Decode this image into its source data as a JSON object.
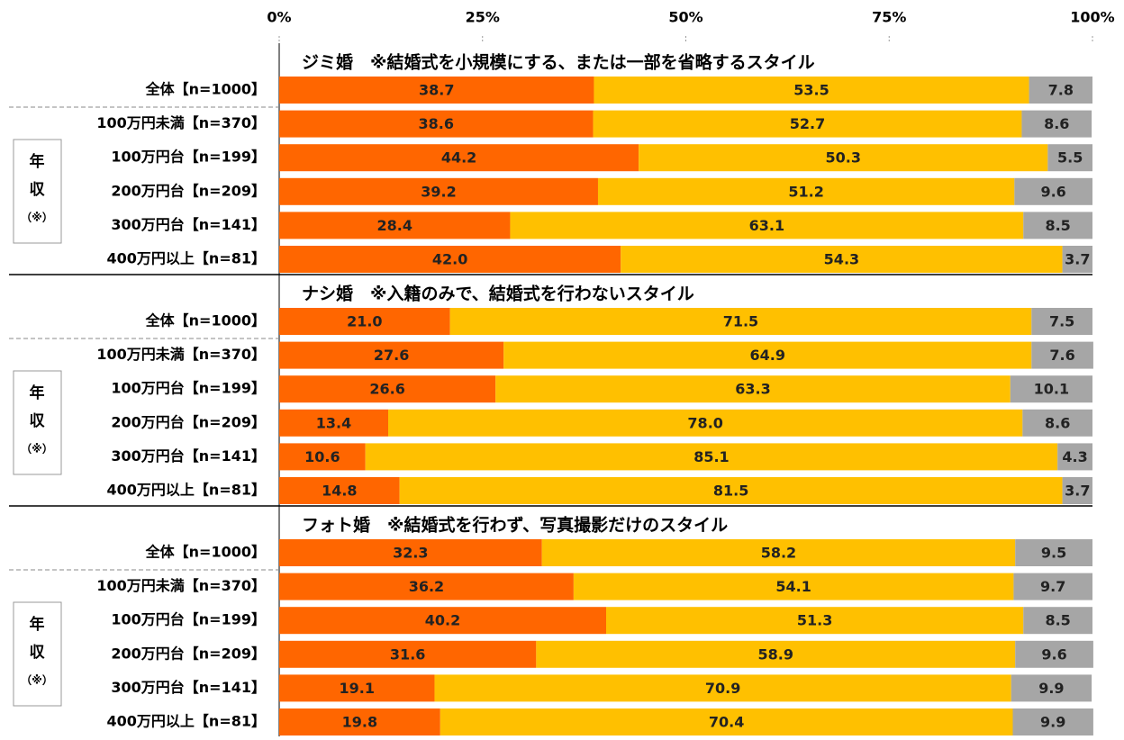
{
  "chart_data": [
    {
      "type": "bar",
      "orientation": "horizontal",
      "stacked": true,
      "title": "ジミ婚　※結婚式を小規模にする、または一部を省略するスタイル",
      "categories": [
        "全体【n=1000】",
        "100万円未満【n=370】",
        "100万円台【n=199】",
        "200万円台【n=209】",
        "300万円台【n=141】",
        "400万円以上【n=81】"
      ],
      "group_label": [
        "年",
        "収",
        "（※）"
      ],
      "series": [
        {
          "color": "#ff6600",
          "values": [
            38.7,
            38.6,
            44.2,
            39.2,
            28.4,
            42.0
          ],
          "value_labels": [
            "38.7",
            "38.6",
            "44.2",
            "39.2",
            "28.4",
            "42.0"
          ]
        },
        {
          "color": "#ffc000",
          "values": [
            53.5,
            52.7,
            50.3,
            51.2,
            63.1,
            54.3
          ],
          "value_labels": [
            "53.5",
            "52.7",
            "50.3",
            "51.2",
            "63.1",
            "54.3"
          ]
        },
        {
          "color": "#a6a6a6",
          "values": [
            7.8,
            8.6,
            5.5,
            9.6,
            8.5,
            3.7
          ],
          "value_labels": [
            "7.8",
            "8.6",
            "5.5",
            "9.6",
            "8.5",
            "3.7"
          ]
        }
      ],
      "xlim": [
        0,
        100
      ],
      "xticks": [
        {
          "value": 0,
          "label": "0%"
        },
        {
          "value": 25,
          "label": "25%"
        },
        {
          "value": 50,
          "label": "50%"
        },
        {
          "value": 75,
          "label": "75%"
        },
        {
          "value": 100,
          "label": "100%"
        }
      ]
    },
    {
      "type": "bar",
      "orientation": "horizontal",
      "stacked": true,
      "title": "ナシ婚　※入籍のみで、結婚式を行わないスタイル",
      "categories": [
        "全体【n=1000】",
        "100万円未満【n=370】",
        "100万円台【n=199】",
        "200万円台【n=209】",
        "300万円台【n=141】",
        "400万円以上【n=81】"
      ],
      "group_label": [
        "年",
        "収",
        "（※）"
      ],
      "series": [
        {
          "color": "#ff6600",
          "values": [
            21.0,
            27.6,
            26.6,
            13.4,
            10.6,
            14.8
          ],
          "value_labels": [
            "21.0",
            "27.6",
            "26.6",
            "13.4",
            "10.6",
            "14.8"
          ]
        },
        {
          "color": "#ffc000",
          "values": [
            71.5,
            64.9,
            63.3,
            78.0,
            85.1,
            81.5
          ],
          "value_labels": [
            "71.5",
            "64.9",
            "63.3",
            "78.0",
            "85.1",
            "81.5"
          ]
        },
        {
          "color": "#a6a6a6",
          "values": [
            7.5,
            7.6,
            10.1,
            8.6,
            4.3,
            3.7
          ],
          "value_labels": [
            "7.5",
            "7.6",
            "10.1",
            "8.6",
            "4.3",
            "3.7"
          ]
        }
      ],
      "xlim": [
        0,
        100
      ]
    },
    {
      "type": "bar",
      "orientation": "horizontal",
      "stacked": true,
      "title": "フォト婚　※結婚式を行わず、写真撮影だけのスタイル",
      "categories": [
        "全体【n=1000】",
        "100万円未満【n=370】",
        "100万円台【n=199】",
        "200万円台【n=209】",
        "300万円台【n=141】",
        "400万円以上【n=81】"
      ],
      "group_label": [
        "年",
        "収",
        "（※）"
      ],
      "series": [
        {
          "color": "#ff6600",
          "values": [
            32.3,
            36.2,
            40.2,
            31.6,
            19.1,
            19.8
          ],
          "value_labels": [
            "32.3",
            "36.2",
            "40.2",
            "31.6",
            "19.1",
            "19.8"
          ]
        },
        {
          "color": "#ffc000",
          "values": [
            58.2,
            54.1,
            51.3,
            58.9,
            70.9,
            70.4
          ],
          "value_labels": [
            "58.2",
            "54.1",
            "51.3",
            "58.9",
            "70.9",
            "70.4"
          ]
        },
        {
          "color": "#a6a6a6",
          "values": [
            9.5,
            9.7,
            8.5,
            9.6,
            9.9,
            9.9
          ],
          "value_labels": [
            "9.5",
            "9.7",
            "8.5",
            "9.6",
            "9.9",
            "9.9"
          ]
        }
      ],
      "xlim": [
        0,
        100
      ]
    }
  ]
}
